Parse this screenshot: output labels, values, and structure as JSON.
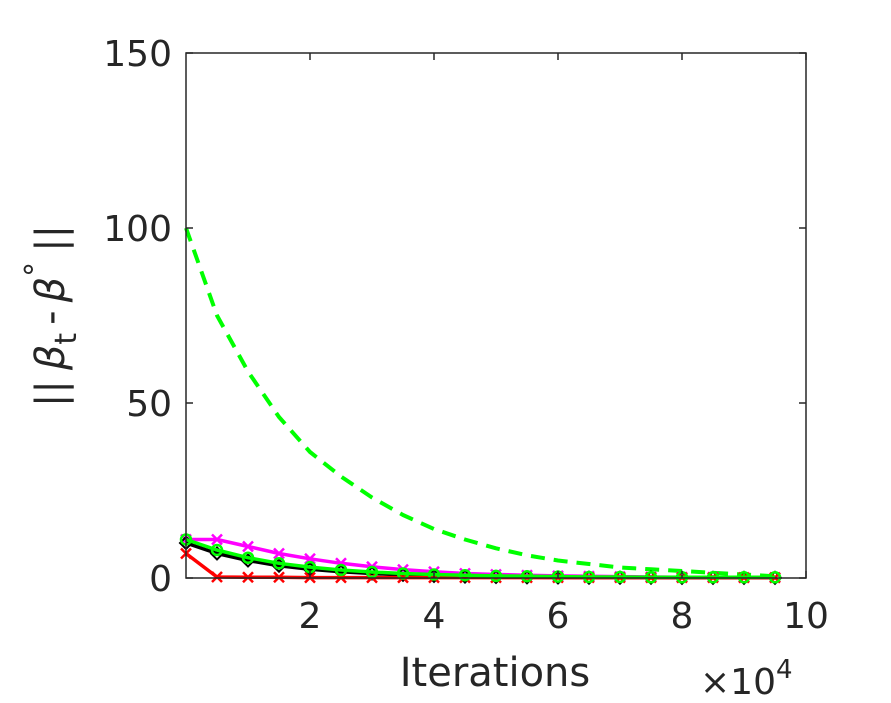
{
  "chart_data": {
    "type": "line",
    "title": "",
    "xlabel": "Iterations",
    "ylabel": "|| β_t - β° ||",
    "ylabel_parts": {
      "bars_left": "||",
      "beta": "β",
      "sub": "t",
      "minus": "-",
      "beta2": "β",
      "sup": "°",
      "bars_right": "||"
    },
    "x_multiplier": {
      "times": "×10",
      "exp": "4"
    },
    "xlim": [
      0,
      10
    ],
    "ylim": [
      0,
      150
    ],
    "x_ticks": [
      2,
      4,
      6,
      8,
      10
    ],
    "x_tick_labels": [
      "2",
      "4",
      "6",
      "8",
      "10"
    ],
    "y_ticks": [
      0,
      50,
      100,
      150
    ],
    "y_tick_labels": [
      "0",
      "50",
      "100",
      "150"
    ],
    "grid": false,
    "legend": "none",
    "series": [
      {
        "color": "#00ff00",
        "style": "dashed",
        "marker": "none",
        "x": [
          0,
          0.5,
          1,
          1.5,
          2,
          2.5,
          3,
          3.5,
          4,
          4.5,
          5,
          5.5,
          6,
          6.5,
          7,
          7.5,
          8,
          8.5,
          9,
          9.5
        ],
        "y": [
          100,
          75,
          59,
          46,
          36,
          29,
          23,
          18,
          14,
          11,
          8.5,
          6.5,
          5,
          4,
          3,
          2.5,
          2,
          1.5,
          1,
          0.5
        ]
      },
      {
        "color": "#ff00ff",
        "style": "solid",
        "marker": "x",
        "x": [
          0,
          0.5,
          1,
          1.5,
          2,
          2.5,
          3,
          3.5,
          4,
          4.5,
          5,
          5.5,
          6,
          6.5,
          7,
          7.5,
          8,
          8.5,
          9,
          9.5
        ],
        "y": [
          11,
          11,
          9,
          7,
          5.5,
          4.2,
          3.2,
          2.4,
          1.8,
          1.3,
          1,
          0.8,
          0.6,
          0.5,
          0.4,
          0.3,
          0.2,
          0.2,
          0.1,
          0.1
        ]
      },
      {
        "color": "#000000",
        "style": "solid",
        "marker": "diamond",
        "x": [
          0,
          0.5,
          1,
          1.5,
          2,
          2.5,
          3,
          3.5,
          4,
          4.5,
          5,
          5.5,
          6,
          6.5,
          7,
          7.5,
          8,
          8.5,
          9,
          9.5
        ],
        "y": [
          10,
          7,
          5,
          3.5,
          2.5,
          1.8,
          1.3,
          0.9,
          0.6,
          0.4,
          0.3,
          0.2,
          0.15,
          0.1,
          0.1,
          0.1,
          0.05,
          0.05,
          0.05,
          0.05
        ]
      },
      {
        "color": "#ff0000",
        "style": "solid",
        "marker": "x",
        "x": [
          0,
          0.5,
          1,
          1.5,
          2,
          2.5,
          3,
          3.5,
          4,
          4.5,
          5,
          5.5,
          6,
          6.5,
          7,
          7.5,
          8,
          8.5,
          9,
          9.5
        ],
        "y": [
          7,
          0.3,
          0.2,
          0.2,
          0.1,
          0.1,
          0.1,
          0.1,
          0.1,
          0.1,
          0.1,
          0.1,
          0.1,
          0.1,
          0.1,
          0.1,
          0.1,
          0.1,
          0.1,
          0.1
        ]
      },
      {
        "color": "#00ff00",
        "style": "solid",
        "marker": "circle",
        "x": [
          0,
          0.5,
          1,
          1.5,
          2,
          2.5,
          3,
          3.5,
          4,
          4.5,
          5,
          5.5,
          6,
          6.5,
          7,
          7.5,
          8,
          8.5,
          9,
          9.5
        ],
        "y": [
          11,
          8,
          5.8,
          4.2,
          3.1,
          2.3,
          1.7,
          1.3,
          1,
          0.8,
          0.6,
          0.5,
          0.4,
          0.3,
          0.3,
          0.2,
          0.2,
          0.2,
          0.2,
          0.2
        ]
      }
    ]
  }
}
